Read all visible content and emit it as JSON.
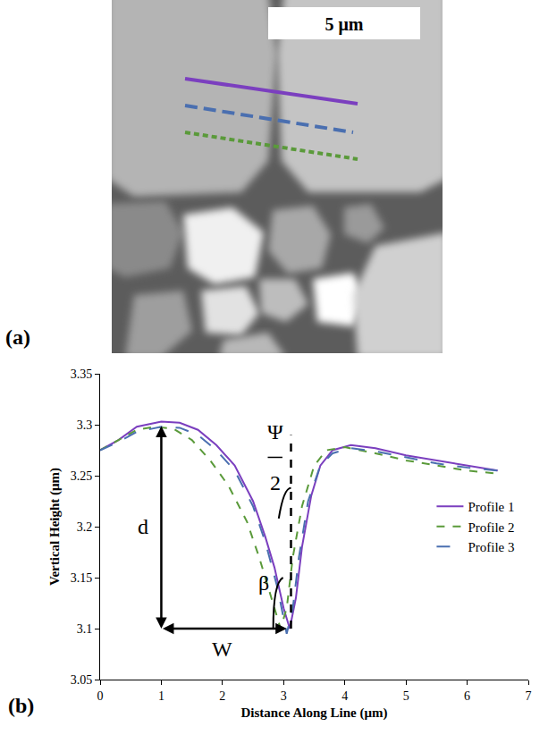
{
  "image_panel": {
    "label": "(a)",
    "scale_bar": "5 μm",
    "lines": [
      {
        "color": "#7b3fbf",
        "line_style": "solid"
      },
      {
        "color": "#4a6fb0",
        "line_style": "dash"
      },
      {
        "color": "#5a9a3a",
        "line_style": "dot"
      }
    ]
  },
  "chart_data": {
    "type": "line",
    "label": "(b)",
    "x_label": "Distance Along Line (μm)",
    "y_label": "Vertical Height (μm)",
    "xlim": [
      0,
      7
    ],
    "xticks": [
      0,
      1,
      2,
      3,
      4,
      5,
      6,
      7
    ],
    "ylim": [
      3.05,
      3.35
    ],
    "yticks": [
      3.05,
      3.1,
      3.15,
      3.2,
      3.25,
      3.3,
      3.35
    ],
    "grid": false,
    "legend": "center right",
    "series": [
      {
        "name": "Profile 1",
        "color": "#7b3fbf",
        "line_style": "solid",
        "x": [
          0,
          0.3,
          0.6,
          1.0,
          1.3,
          1.6,
          1.9,
          2.2,
          2.5,
          2.7,
          2.85,
          3.0,
          3.1,
          3.2,
          3.3,
          3.45,
          3.6,
          3.8,
          4.1,
          4.5,
          5.0,
          5.5,
          6.0,
          6.5
        ],
        "values": [
          3.275,
          3.285,
          3.298,
          3.303,
          3.302,
          3.295,
          3.28,
          3.26,
          3.225,
          3.19,
          3.16,
          3.12,
          3.1,
          3.13,
          3.18,
          3.23,
          3.26,
          3.275,
          3.28,
          3.277,
          3.27,
          3.265,
          3.26,
          3.255
        ]
      },
      {
        "name": "Profile 2",
        "color": "#5a9a3a",
        "line_style": "dot",
        "x": [
          0,
          0.3,
          0.6,
          0.9,
          1.2,
          1.5,
          1.8,
          2.1,
          2.4,
          2.6,
          2.8,
          2.95,
          3.05,
          3.15,
          3.3,
          3.5,
          3.7,
          4.0,
          4.5,
          5.0,
          5.5,
          6.0,
          6.5
        ],
        "values": [
          3.275,
          3.285,
          3.295,
          3.298,
          3.296,
          3.285,
          3.265,
          3.24,
          3.205,
          3.17,
          3.13,
          3.1,
          3.12,
          3.17,
          3.22,
          3.26,
          3.275,
          3.278,
          3.272,
          3.265,
          3.26,
          3.255,
          3.252
        ]
      },
      {
        "name": "Profile 3",
        "color": "#4a6fb0",
        "line_style": "dash",
        "x": [
          0,
          0.3,
          0.6,
          1.0,
          1.3,
          1.6,
          1.9,
          2.2,
          2.5,
          2.7,
          2.9,
          3.05,
          3.15,
          3.25,
          3.4,
          3.6,
          3.8,
          4.1,
          4.5,
          5.0,
          5.5,
          6.0,
          6.5
        ],
        "values": [
          3.275,
          3.283,
          3.293,
          3.298,
          3.297,
          3.29,
          3.275,
          3.255,
          3.22,
          3.185,
          3.14,
          3.095,
          3.12,
          3.17,
          3.225,
          3.26,
          3.272,
          3.277,
          3.274,
          3.268,
          3.262,
          3.258,
          3.255
        ]
      }
    ],
    "annotations": [
      {
        "text": "d",
        "x": 0.7,
        "y": 3.2,
        "arrow_from": [
          1.0,
          3.3
        ],
        "arrow_to": [
          1.0,
          3.1
        ]
      },
      {
        "text": "W",
        "x": 2.0,
        "y": 3.08,
        "arrow_from": [
          1.0,
          3.1
        ],
        "arrow_to": [
          3.05,
          3.1
        ]
      },
      {
        "text": "β",
        "x": 2.68,
        "y": 3.145
      },
      {
        "text": "Ψ",
        "x": 2.86,
        "y": 3.293
      },
      {
        "text": "2",
        "x": 2.86,
        "y": 3.243
      }
    ],
    "vertical_line": {
      "x": 3.12,
      "y0": 3.1,
      "y1": 3.29
    }
  }
}
